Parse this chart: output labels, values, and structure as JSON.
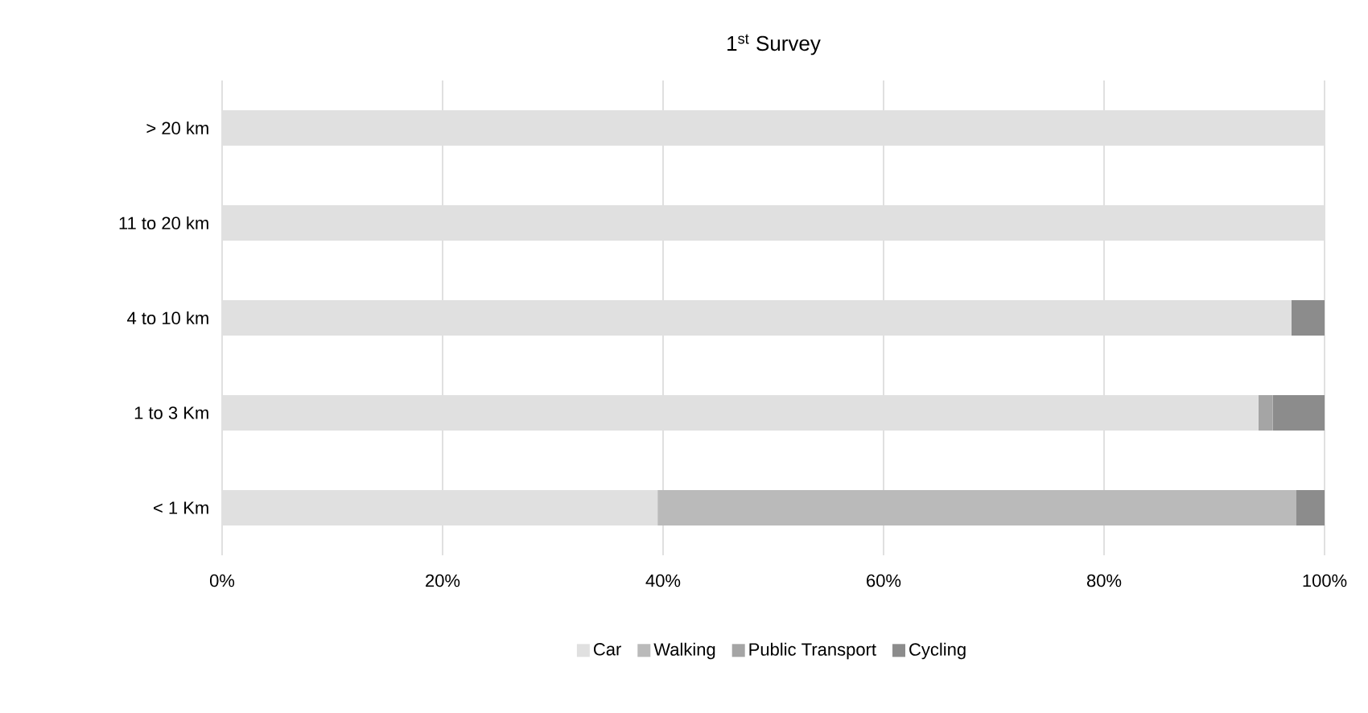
{
  "chart_data": {
    "type": "bar",
    "orientation": "horizontal",
    "stacked": true,
    "title": "1$^{st}$ Survey",
    "categories": [
      "> 20 km",
      "11 to 20 km",
      "4 to 10 km",
      "1 to 3 Km",
      "< 1 Km"
    ],
    "series": [
      {
        "name": "Car",
        "color": "#e0e0e0",
        "values": [
          100,
          100,
          97,
          94,
          39.5
        ]
      },
      {
        "name": "Walking",
        "color": "#bababa",
        "values": [
          0,
          0,
          0,
          0,
          57.9
        ]
      },
      {
        "name": "Public Transport",
        "color": "#a5a5a5",
        "values": [
          0,
          0,
          0,
          1.3,
          0
        ]
      },
      {
        "name": "Cycling",
        "color": "#8c8c8c",
        "values": [
          0,
          0,
          3,
          4.7,
          2.6
        ]
      }
    ],
    "xlim": [
      0,
      100
    ],
    "xticks": [
      {
        "value": 0,
        "label": "0%"
      },
      {
        "value": 20,
        "label": "20%"
      },
      {
        "value": 40,
        "label": "40%"
      },
      {
        "value": 60,
        "label": "60%"
      },
      {
        "value": 80,
        "label": "80%"
      },
      {
        "value": 100,
        "label": "100%"
      }
    ],
    "grid": "x",
    "legend": "bottom"
  }
}
